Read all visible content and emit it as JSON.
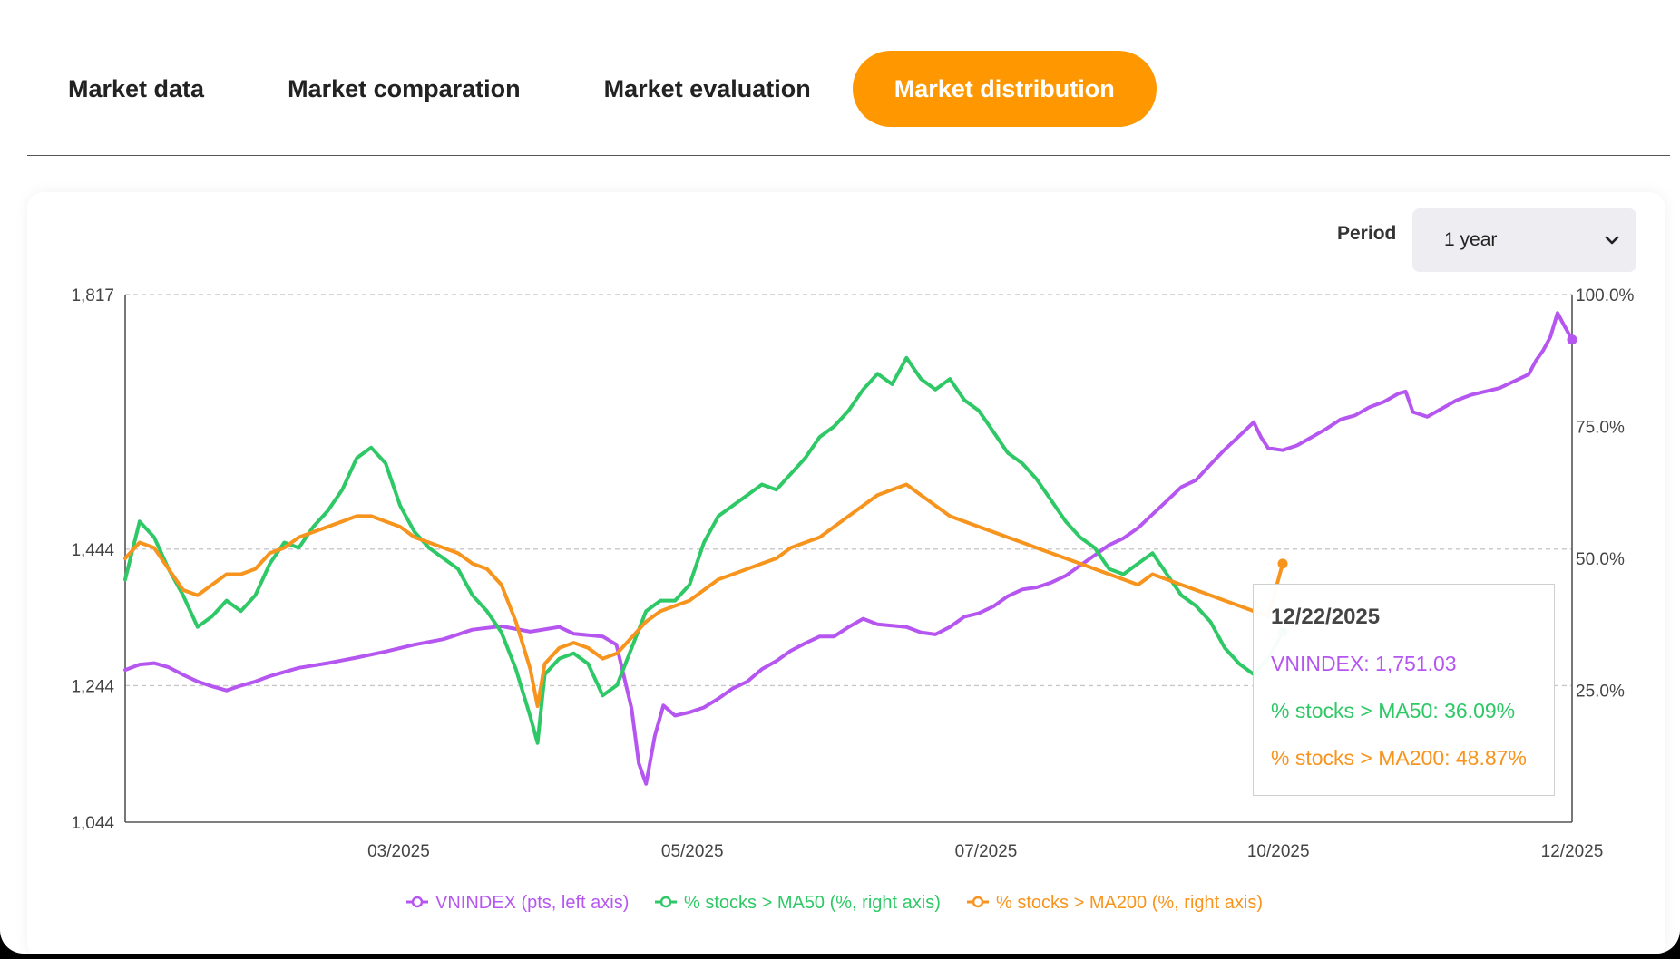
{
  "tabs": [
    {
      "label": "Market data",
      "active": false
    },
    {
      "label": "Market comparation",
      "active": false
    },
    {
      "label": "Market evaluation",
      "active": false
    },
    {
      "label": "Market distribution",
      "active": true
    }
  ],
  "colors": {
    "accent": "#ff9800",
    "vnindex": "#b556f0",
    "ma50": "#2ec866",
    "ma200": "#f7941d",
    "grid": "#c8c8c8"
  },
  "period": {
    "label": "Period",
    "selected": "1 year"
  },
  "tooltip": {
    "date": "12/22/2025",
    "rows": [
      {
        "key": "vnindex",
        "text": "VNINDEX: 1,751.03"
      },
      {
        "key": "ma50",
        "text": "% stocks > MA50: 36.09%"
      },
      {
        "key": "ma200",
        "text": "% stocks > MA200: 48.87%"
      }
    ]
  },
  "chart_data": {
    "type": "line",
    "y_left": {
      "ticks": [
        "1,817",
        "1,444",
        "1,244",
        "1,044"
      ],
      "tick_values": [
        1817,
        1444,
        1244,
        1044
      ],
      "range": [
        1044,
        1817
      ]
    },
    "y_right": {
      "ticks": [
        "100.0%",
        "75.0%",
        "50.0%",
        "25.0%"
      ],
      "tick_values": [
        100,
        75,
        50,
        25
      ],
      "range": [
        0,
        100
      ]
    },
    "x_ticks": [
      "03/2025",
      "05/2025",
      "07/2025",
      "10/2025",
      "12/2025"
    ],
    "x_tick_fractions": [
      0.189,
      0.392,
      0.595,
      0.797,
      1.0
    ],
    "grid": "dashed horizontal",
    "legend_position": "bottom-center",
    "series": [
      {
        "key": "vnindex",
        "name": "VNINDEX (pts, left axis)",
        "axis": "left",
        "points": [
          [
            0.0,
            1267
          ],
          [
            0.01,
            1275
          ],
          [
            0.02,
            1277
          ],
          [
            0.03,
            1271
          ],
          [
            0.04,
            1260
          ],
          [
            0.05,
            1250
          ],
          [
            0.06,
            1243
          ],
          [
            0.07,
            1237
          ],
          [
            0.08,
            1244
          ],
          [
            0.09,
            1250
          ],
          [
            0.1,
            1258
          ],
          [
            0.12,
            1270
          ],
          [
            0.14,
            1277
          ],
          [
            0.16,
            1285
          ],
          [
            0.18,
            1294
          ],
          [
            0.2,
            1304
          ],
          [
            0.22,
            1312
          ],
          [
            0.24,
            1326
          ],
          [
            0.26,
            1331
          ],
          [
            0.28,
            1323
          ],
          [
            0.3,
            1330
          ],
          [
            0.31,
            1320
          ],
          [
            0.32,
            1318
          ],
          [
            0.33,
            1316
          ],
          [
            0.3395,
            1304
          ],
          [
            0.345,
            1255
          ],
          [
            0.35,
            1210
          ],
          [
            0.355,
            1130
          ],
          [
            0.36,
            1100
          ],
          [
            0.366,
            1170
          ],
          [
            0.372,
            1215
          ],
          [
            0.38,
            1200
          ],
          [
            0.39,
            1205
          ],
          [
            0.4,
            1212
          ],
          [
            0.41,
            1225
          ],
          [
            0.42,
            1240
          ],
          [
            0.43,
            1250
          ],
          [
            0.44,
            1268
          ],
          [
            0.45,
            1280
          ],
          [
            0.46,
            1295
          ],
          [
            0.47,
            1306
          ],
          [
            0.48,
            1316
          ],
          [
            0.49,
            1316
          ],
          [
            0.5,
            1330
          ],
          [
            0.51,
            1342
          ],
          [
            0.52,
            1334
          ],
          [
            0.53,
            1332
          ],
          [
            0.54,
            1330
          ],
          [
            0.55,
            1322
          ],
          [
            0.56,
            1319
          ],
          [
            0.57,
            1330
          ],
          [
            0.58,
            1345
          ],
          [
            0.59,
            1350
          ],
          [
            0.6,
            1360
          ],
          [
            0.61,
            1375
          ],
          [
            0.62,
            1385
          ],
          [
            0.63,
            1388
          ],
          [
            0.64,
            1395
          ],
          [
            0.65,
            1405
          ],
          [
            0.66,
            1420
          ],
          [
            0.67,
            1435
          ],
          [
            0.68,
            1450
          ],
          [
            0.69,
            1460
          ],
          [
            0.7,
            1475
          ],
          [
            0.71,
            1495
          ],
          [
            0.72,
            1515
          ],
          [
            0.73,
            1535
          ],
          [
            0.74,
            1545
          ],
          [
            0.75,
            1568
          ],
          [
            0.76,
            1590
          ],
          [
            0.77,
            1610
          ],
          [
            0.78,
            1630
          ],
          [
            0.785,
            1608
          ],
          [
            0.79,
            1592
          ],
          [
            0.8,
            1589
          ],
          [
            0.81,
            1596
          ],
          [
            0.82,
            1608
          ],
          [
            0.83,
            1620
          ],
          [
            0.84,
            1634
          ],
          [
            0.85,
            1640
          ],
          [
            0.86,
            1652
          ],
          [
            0.87,
            1660
          ],
          [
            0.88,
            1672
          ],
          [
            0.885,
            1675
          ],
          [
            0.89,
            1645
          ],
          [
            0.9,
            1638
          ],
          [
            0.91,
            1650
          ],
          [
            0.92,
            1662
          ],
          [
            0.93,
            1670
          ],
          [
            0.94,
            1675
          ],
          [
            0.95,
            1680
          ],
          [
            0.96,
            1690
          ],
          [
            0.97,
            1700
          ],
          [
            0.975,
            1720
          ],
          [
            0.98,
            1735
          ],
          [
            0.985,
            1755
          ],
          [
            0.99,
            1790
          ],
          [
            0.995,
            1770
          ],
          [
            1.0,
            1751
          ]
        ]
      },
      {
        "key": "ma50",
        "name": "% stocks > MA50 (%, right axis)",
        "axis": "right",
        "points": [
          [
            0.0,
            46
          ],
          [
            0.01,
            57
          ],
          [
            0.02,
            54
          ],
          [
            0.03,
            48
          ],
          [
            0.04,
            43
          ],
          [
            0.05,
            37
          ],
          [
            0.06,
            39
          ],
          [
            0.07,
            42
          ],
          [
            0.08,
            40
          ],
          [
            0.09,
            43
          ],
          [
            0.1,
            49
          ],
          [
            0.11,
            53
          ],
          [
            0.12,
            52
          ],
          [
            0.13,
            56
          ],
          [
            0.14,
            59
          ],
          [
            0.15,
            63
          ],
          [
            0.16,
            69
          ],
          [
            0.17,
            71
          ],
          [
            0.18,
            68
          ],
          [
            0.19,
            60
          ],
          [
            0.2,
            55
          ],
          [
            0.21,
            52
          ],
          [
            0.22,
            50
          ],
          [
            0.23,
            48
          ],
          [
            0.24,
            43
          ],
          [
            0.25,
            40
          ],
          [
            0.26,
            36
          ],
          [
            0.27,
            29
          ],
          [
            0.28,
            20
          ],
          [
            0.285,
            15
          ],
          [
            0.29,
            28
          ],
          [
            0.3,
            31
          ],
          [
            0.31,
            32
          ],
          [
            0.32,
            30
          ],
          [
            0.33,
            24
          ],
          [
            0.34,
            26
          ],
          [
            0.35,
            33
          ],
          [
            0.36,
            40
          ],
          [
            0.37,
            42
          ],
          [
            0.38,
            42
          ],
          [
            0.39,
            45
          ],
          [
            0.4,
            53
          ],
          [
            0.41,
            58
          ],
          [
            0.42,
            60
          ],
          [
            0.43,
            62
          ],
          [
            0.44,
            64
          ],
          [
            0.45,
            63
          ],
          [
            0.46,
            66
          ],
          [
            0.47,
            69
          ],
          [
            0.48,
            73
          ],
          [
            0.49,
            75
          ],
          [
            0.5,
            78
          ],
          [
            0.51,
            82
          ],
          [
            0.52,
            85
          ],
          [
            0.53,
            83
          ],
          [
            0.54,
            88
          ],
          [
            0.55,
            84
          ],
          [
            0.56,
            82
          ],
          [
            0.57,
            84
          ],
          [
            0.58,
            80
          ],
          [
            0.59,
            78
          ],
          [
            0.6,
            74
          ],
          [
            0.61,
            70
          ],
          [
            0.62,
            68
          ],
          [
            0.63,
            65
          ],
          [
            0.64,
            61
          ],
          [
            0.65,
            57
          ],
          [
            0.66,
            54
          ],
          [
            0.67,
            52
          ],
          [
            0.68,
            48
          ],
          [
            0.69,
            47
          ],
          [
            0.7,
            49
          ],
          [
            0.71,
            51
          ],
          [
            0.72,
            47
          ],
          [
            0.73,
            43
          ],
          [
            0.74,
            41
          ],
          [
            0.75,
            38
          ],
          [
            0.76,
            33
          ],
          [
            0.77,
            30
          ],
          [
            0.78,
            28
          ],
          [
            0.79,
            31
          ],
          [
            0.8,
            36
          ]
        ]
      },
      {
        "key": "ma200",
        "name": "% stocks > MA200 (%, right axis)",
        "axis": "right",
        "points": [
          [
            0.0,
            50
          ],
          [
            0.01,
            53
          ],
          [
            0.02,
            52
          ],
          [
            0.03,
            48
          ],
          [
            0.04,
            44
          ],
          [
            0.05,
            43
          ],
          [
            0.06,
            45
          ],
          [
            0.07,
            47
          ],
          [
            0.08,
            47
          ],
          [
            0.09,
            48
          ],
          [
            0.1,
            51
          ],
          [
            0.11,
            52
          ],
          [
            0.12,
            54
          ],
          [
            0.13,
            55
          ],
          [
            0.14,
            56
          ],
          [
            0.15,
            57
          ],
          [
            0.16,
            58
          ],
          [
            0.17,
            58
          ],
          [
            0.18,
            57
          ],
          [
            0.19,
            56
          ],
          [
            0.2,
            54
          ],
          [
            0.21,
            53
          ],
          [
            0.22,
            52
          ],
          [
            0.23,
            51
          ],
          [
            0.24,
            49
          ],
          [
            0.25,
            48
          ],
          [
            0.26,
            45
          ],
          [
            0.27,
            38
          ],
          [
            0.28,
            29
          ],
          [
            0.285,
            22
          ],
          [
            0.29,
            30
          ],
          [
            0.3,
            33
          ],
          [
            0.31,
            34
          ],
          [
            0.32,
            33
          ],
          [
            0.33,
            31
          ],
          [
            0.34,
            32
          ],
          [
            0.35,
            35
          ],
          [
            0.36,
            38
          ],
          [
            0.37,
            40
          ],
          [
            0.38,
            41
          ],
          [
            0.39,
            42
          ],
          [
            0.4,
            44
          ],
          [
            0.41,
            46
          ],
          [
            0.42,
            47
          ],
          [
            0.43,
            48
          ],
          [
            0.44,
            49
          ],
          [
            0.45,
            50
          ],
          [
            0.46,
            52
          ],
          [
            0.47,
            53
          ],
          [
            0.48,
            54
          ],
          [
            0.49,
            56
          ],
          [
            0.5,
            58
          ],
          [
            0.51,
            60
          ],
          [
            0.52,
            62
          ],
          [
            0.53,
            63
          ],
          [
            0.54,
            64
          ],
          [
            0.55,
            62
          ],
          [
            0.56,
            60
          ],
          [
            0.57,
            58
          ],
          [
            0.58,
            57
          ],
          [
            0.59,
            56
          ],
          [
            0.6,
            55
          ],
          [
            0.61,
            54
          ],
          [
            0.62,
            53
          ],
          [
            0.63,
            52
          ],
          [
            0.64,
            51
          ],
          [
            0.65,
            50
          ],
          [
            0.66,
            49
          ],
          [
            0.67,
            48
          ],
          [
            0.68,
            47
          ],
          [
            0.69,
            46
          ],
          [
            0.7,
            45
          ],
          [
            0.71,
            47
          ],
          [
            0.72,
            46
          ],
          [
            0.73,
            45
          ],
          [
            0.74,
            44
          ],
          [
            0.75,
            43
          ],
          [
            0.76,
            42
          ],
          [
            0.77,
            41
          ],
          [
            0.78,
            40
          ],
          [
            0.79,
            39
          ],
          [
            0.8,
            49
          ]
        ]
      }
    ]
  }
}
